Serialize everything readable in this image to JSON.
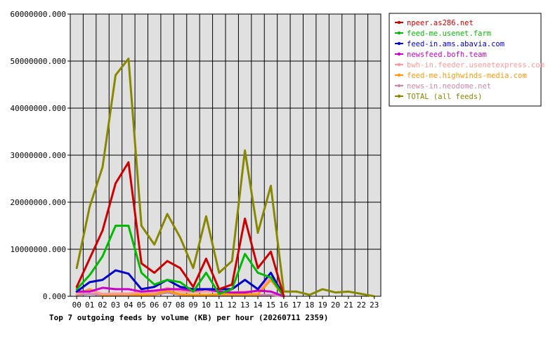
{
  "chart_data": {
    "type": "line",
    "title": "Top 7 outgoing feeds by volume (KB) per hour (20260711 2359)",
    "xlabel": "",
    "ylabel": "",
    "ylim": [
      0,
      60000000
    ],
    "yticks": [
      "0.000",
      "10000000.000",
      "20000000.000",
      "30000000.000",
      "40000000.000",
      "50000000.000",
      "60000000.000"
    ],
    "x": [
      "00",
      "01",
      "02",
      "03",
      "04",
      "05",
      "06",
      "07",
      "08",
      "09",
      "10",
      "11",
      "12",
      "13",
      "14",
      "15",
      "16",
      "17",
      "18",
      "19",
      "20",
      "21",
      "22",
      "23"
    ],
    "grid": true,
    "legend": "top-right",
    "series": [
      {
        "name": "npeer.as286.net",
        "color": "#cc0000",
        "values": [
          2000000,
          8000000,
          14000000,
          24000000,
          28500000,
          7000000,
          5000000,
          7500000,
          6000000,
          2000000,
          8000000,
          1500000,
          2500000,
          16500000,
          6000000,
          9500000,
          0,
          null,
          null,
          null,
          null,
          null,
          null,
          null
        ]
      },
      {
        "name": "feed-me.usenet.farm",
        "color": "#00bb00",
        "values": [
          1500000,
          4500000,
          8500000,
          15000000,
          15000000,
          5000000,
          2500000,
          3500000,
          3000000,
          1000000,
          5000000,
          500000,
          1500000,
          9000000,
          5000000,
          4000000,
          0,
          null,
          null,
          null,
          null,
          null,
          null,
          null
        ]
      },
      {
        "name": "feed-in.ams.abavia.com",
        "color": "#0000cc",
        "values": [
          1000000,
          3000000,
          3500000,
          5500000,
          4800000,
          1500000,
          2000000,
          3500000,
          2000000,
          1500000,
          1500000,
          1500000,
          1500000,
          3500000,
          1500000,
          5000000,
          0,
          null,
          null,
          null,
          null,
          null,
          null,
          null
        ]
      },
      {
        "name": "newsfeed.bofh.team",
        "color": "#cc00cc",
        "values": [
          1000000,
          1000000,
          1800000,
          1500000,
          1500000,
          1000000,
          1200000,
          1500000,
          1500000,
          1200000,
          1500000,
          1000000,
          800000,
          800000,
          1200000,
          1000000,
          0,
          null,
          null,
          null,
          null,
          null,
          null,
          null
        ]
      },
      {
        "name": "bwh-in.feeder.usenetexpress.com",
        "color": "#ff9999",
        "values": [
          500000,
          1200000,
          500000,
          600000,
          600000,
          800000,
          700000,
          1800000,
          1000000,
          900000,
          1000000,
          1000000,
          800000,
          1000000,
          1000000,
          4000000,
          0,
          null,
          null,
          null,
          null,
          null,
          null,
          null
        ]
      },
      {
        "name": "feed-me.highwinds-media.com",
        "color": "#ff9900",
        "values": [
          400000,
          1500000,
          300000,
          400000,
          400000,
          300000,
          400000,
          1200000,
          400000,
          300000,
          300000,
          400000,
          400000,
          400000,
          400000,
          3500000,
          0,
          null,
          null,
          null,
          null,
          null,
          null,
          null
        ]
      },
      {
        "name": "news-in.neodome.net",
        "color": "#cc88aa",
        "values": [
          300000,
          500000,
          300000,
          300000,
          300000,
          300000,
          300000,
          800000,
          300000,
          300000,
          300000,
          300000,
          300000,
          300000,
          300000,
          300000,
          0,
          null,
          null,
          null,
          null,
          null,
          null,
          null
        ]
      },
      {
        "name": "TOTAL (all feeds)",
        "color": "#888800",
        "values": [
          6000000,
          19000000,
          27500000,
          47000000,
          50500000,
          15000000,
          11000000,
          17500000,
          12500000,
          6000000,
          17000000,
          5000000,
          7500000,
          31000000,
          13500000,
          23500000,
          1000000,
          1000000,
          300000,
          1500000,
          800000,
          1000000,
          500000,
          0
        ]
      }
    ]
  }
}
